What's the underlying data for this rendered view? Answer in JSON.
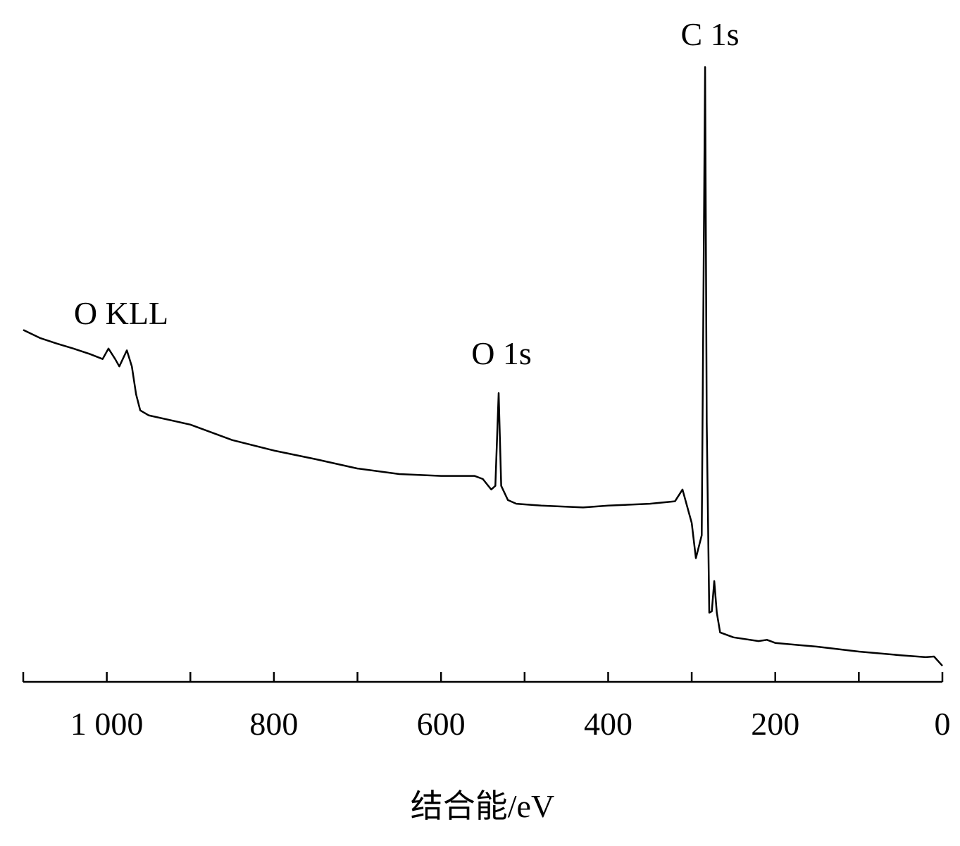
{
  "chart_data": {
    "type": "line",
    "x_label": "结合能/eV",
    "annotations": [
      "C 1s",
      "O 1s",
      "O KLL"
    ],
    "xlim": [
      1100,
      0
    ],
    "xticks": [
      {
        "value": 1000,
        "label": "1 000"
      },
      800,
      600,
      400,
      200,
      0
    ],
    "xminorticks": [
      1100,
      900,
      700,
      500,
      300,
      100
    ],
    "ylim": [
      0,
      100
    ],
    "series": [
      {
        "color": "#000000",
        "x": [
          1100,
          1080,
          1060,
          1040,
          1020,
          1005,
          998,
          990,
          985,
          976,
          970,
          965,
          960,
          950,
          900,
          850,
          800,
          750,
          700,
          650,
          600,
          560,
          550,
          540,
          535,
          531,
          528,
          520,
          510,
          480,
          430,
          400,
          350,
          320,
          311,
          300,
          295,
          288,
          284,
          282,
          279,
          276,
          273,
          270,
          266,
          250,
          220,
          210,
          200,
          150,
          100,
          50,
          20,
          10,
          0
        ],
        "values": [
          56.9,
          55.6,
          54.7,
          53.9,
          53.0,
          52.2,
          53.9,
          52.2,
          51.0,
          53.6,
          51.0,
          46.5,
          43.9,
          43.1,
          41.6,
          39.1,
          37.4,
          36.0,
          34.5,
          33.6,
          33.3,
          33.3,
          32.8,
          31.1,
          31.7,
          46.7,
          31.7,
          29.4,
          28.8,
          28.5,
          28.2,
          28.5,
          28.8,
          29.2,
          31.1,
          25.7,
          20.0,
          23.7,
          99.4,
          41.9,
          11.2,
          11.4,
          16.3,
          11.2,
          8.0,
          7.2,
          6.6,
          6.8,
          6.3,
          5.7,
          4.9,
          4.3,
          4.0,
          4.1,
          2.6
        ]
      }
    ]
  }
}
